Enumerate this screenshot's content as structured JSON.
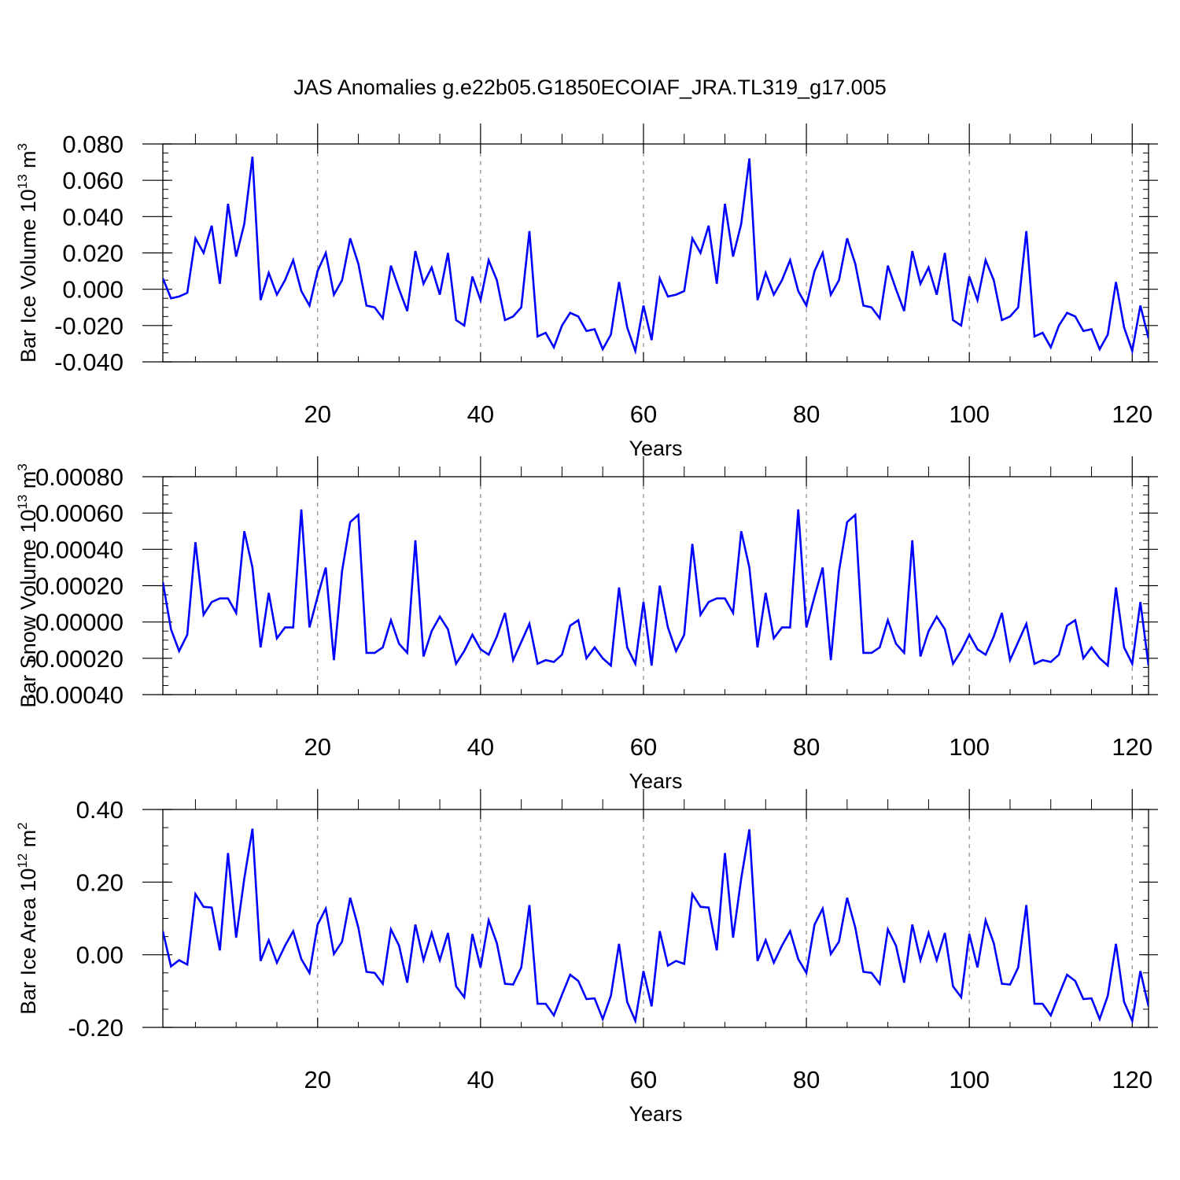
{
  "figure_title": "JAS Anomalies g.e22b05.G1850ECOIAF_JRA.TL319_g17.005",
  "line_color": "#0000ff",
  "chart_data": [
    {
      "type": "line",
      "title": "JAS Anomalies g.e22b05.G1850ECOIAF_JRA.TL319_g17.005",
      "xlabel": "Years",
      "ylabel_base": "Bar Ice Volume 10",
      "ylabel_exp": "13",
      "ylabel_unit": " m",
      "ylabel_unit_exp": "3",
      "xlim": [
        1,
        122
      ],
      "ylim": [
        -0.04,
        0.08
      ],
      "yticks": [
        -0.04,
        -0.02,
        0.0,
        0.02,
        0.04,
        0.06,
        0.08
      ],
      "ytick_labels": [
        "-0.040",
        "-0.020",
        "0.000",
        "0.020",
        "0.040",
        "0.060",
        "0.080"
      ],
      "xticks": [
        20,
        40,
        60,
        80,
        100,
        120
      ],
      "xtick_labels": [
        "20",
        "40",
        "60",
        "80",
        "100",
        "120"
      ],
      "series": [
        {
          "name": "Bar Ice Volume",
          "x_start": 1,
          "values": [
            0.006,
            -0.005,
            -0.004,
            -0.002,
            0.028,
            0.02,
            0.035,
            0.003,
            0.047,
            0.018,
            0.036,
            0.073,
            -0.006,
            0.009,
            -0.003,
            0.005,
            0.016,
            -0.001,
            -0.009,
            0.01,
            0.02,
            -0.003,
            0.005,
            0.028,
            0.014,
            -0.009,
            -0.01,
            -0.016,
            0.013,
            0.0,
            -0.012,
            0.021,
            0.003,
            0.012,
            -0.003,
            0.02,
            -0.017,
            -0.02,
            0.007,
            -0.006,
            0.016,
            0.005,
            -0.017,
            -0.015,
            -0.01,
            0.032,
            -0.026,
            -0.024,
            -0.032,
            -0.02,
            -0.013,
            -0.015,
            -0.023,
            -0.022,
            -0.033,
            -0.025,
            0.004,
            -0.021,
            -0.034,
            -0.009,
            -0.028,
            0.006,
            -0.004,
            -0.003,
            -0.001,
            0.028,
            0.02,
            0.035,
            0.003,
            0.047,
            0.018,
            0.036,
            0.072,
            -0.006,
            0.009,
            -0.003,
            0.005,
            0.016,
            -0.001,
            -0.009,
            0.01,
            0.02,
            -0.003,
            0.005,
            0.028,
            0.014,
            -0.009,
            -0.01,
            -0.016,
            0.013,
            0.0,
            -0.012,
            0.021,
            0.003,
            0.012,
            -0.003,
            0.02,
            -0.017,
            -0.02,
            0.007,
            -0.006,
            0.016,
            0.005,
            -0.017,
            -0.015,
            -0.01,
            0.032,
            -0.026,
            -0.024,
            -0.032,
            -0.02,
            -0.013,
            -0.015,
            -0.023,
            -0.022,
            -0.033,
            -0.025,
            0.004,
            -0.021,
            -0.034,
            -0.009,
            -0.027
          ]
        }
      ]
    },
    {
      "type": "line",
      "xlabel": "Years",
      "ylabel_base": "Bar Snow Volume 10",
      "ylabel_exp": "13",
      "ylabel_unit": " m",
      "ylabel_unit_exp": "3",
      "xlim": [
        1,
        122
      ],
      "ylim": [
        -0.0004,
        0.0008
      ],
      "yticks": [
        -0.0004,
        -0.0002,
        0.0,
        0.0002,
        0.0004,
        0.0006,
        0.0008
      ],
      "ytick_labels": [
        "-0.00040",
        "-0.00020",
        "0.00000",
        "0.00020",
        "0.00040",
        "0.00060",
        "0.00080"
      ],
      "xticks": [
        20,
        40,
        60,
        80,
        100,
        120
      ],
      "xtick_labels": [
        "20",
        "40",
        "60",
        "80",
        "100",
        "120"
      ],
      "series": [
        {
          "name": "Bar Snow Volume",
          "x_start": 1,
          "values": [
            0.00022,
            -4e-05,
            -0.00016,
            -7e-05,
            0.00044,
            4e-05,
            0.00011,
            0.00013,
            0.00013,
            5e-05,
            0.0005,
            0.0003,
            -0.00014,
            0.00016,
            -9e-05,
            -3e-05,
            -3e-05,
            0.00062,
            -3e-05,
            0.00014,
            0.0003,
            -0.00021,
            0.00028,
            0.00055,
            0.00059,
            -0.00017,
            -0.00017,
            -0.00014,
            1e-05,
            -0.00012,
            -0.00017,
            0.00045,
            -0.00019,
            -5e-05,
            3e-05,
            -4e-05,
            -0.00023,
            -0.00016,
            -7e-05,
            -0.00015,
            -0.00018,
            -8e-05,
            5e-05,
            -0.00021,
            -0.00011,
            -1e-05,
            -0.00023,
            -0.00021,
            -0.00022,
            -0.00018,
            -2e-05,
            1e-05,
            -0.0002,
            -0.00014,
            -0.0002,
            -0.00024,
            0.00019,
            -0.00014,
            -0.00023,
            0.00011,
            -0.00024,
            0.0002,
            -3e-05,
            -0.00016,
            -7e-05,
            0.00043,
            4e-05,
            0.00011,
            0.00013,
            0.00013,
            5e-05,
            0.0005,
            0.0003,
            -0.00014,
            0.00016,
            -9e-05,
            -3e-05,
            -3e-05,
            0.00062,
            -3e-05,
            0.00014,
            0.0003,
            -0.00021,
            0.00028,
            0.00055,
            0.00059,
            -0.00017,
            -0.00017,
            -0.00014,
            1e-05,
            -0.00012,
            -0.00017,
            0.00045,
            -0.00019,
            -5e-05,
            3e-05,
            -4e-05,
            -0.00023,
            -0.00016,
            -7e-05,
            -0.00015,
            -0.00018,
            -8e-05,
            5e-05,
            -0.00021,
            -0.00011,
            -1e-05,
            -0.00023,
            -0.00021,
            -0.00022,
            -0.00018,
            -2e-05,
            1e-05,
            -0.0002,
            -0.00014,
            -0.0002,
            -0.00024,
            0.00019,
            -0.00014,
            -0.00023,
            0.00011,
            -0.00024
          ]
        }
      ]
    },
    {
      "type": "line",
      "xlabel": "Years",
      "ylabel_base": "Bar Ice Area 10",
      "ylabel_exp": "12",
      "ylabel_unit": " m",
      "ylabel_unit_exp": "2",
      "xlim": [
        1,
        122
      ],
      "ylim": [
        -0.2,
        0.4
      ],
      "yticks": [
        -0.2,
        0.0,
        0.2,
        0.4
      ],
      "ytick_labels": [
        "-0.20",
        "0.00",
        "0.20",
        "0.40"
      ],
      "xticks": [
        20,
        40,
        60,
        80,
        100,
        120
      ],
      "xtick_labels": [
        "20",
        "40",
        "60",
        "80",
        "100",
        "120"
      ],
      "series": [
        {
          "name": "Bar Ice Area",
          "x_start": 1,
          "values": [
            0.065,
            -0.032,
            -0.015,
            -0.027,
            0.167,
            0.132,
            0.13,
            0.012,
            0.28,
            0.047,
            0.21,
            0.347,
            -0.017,
            0.04,
            -0.022,
            0.025,
            0.065,
            -0.012,
            -0.05,
            0.083,
            0.127,
            0.002,
            0.036,
            0.157,
            0.075,
            -0.047,
            -0.05,
            -0.08,
            0.07,
            0.025,
            -0.077,
            0.083,
            -0.015,
            0.06,
            -0.015,
            0.06,
            -0.087,
            -0.117,
            0.057,
            -0.035,
            0.095,
            0.032,
            -0.08,
            -0.082,
            -0.035,
            0.137,
            -0.135,
            -0.135,
            -0.167,
            -0.11,
            -0.055,
            -0.072,
            -0.122,
            -0.12,
            -0.177,
            -0.113,
            0.03,
            -0.13,
            -0.182,
            -0.045,
            -0.142,
            0.065,
            -0.03,
            -0.017,
            -0.025,
            0.167,
            0.132,
            0.13,
            0.012,
            0.28,
            0.047,
            0.21,
            0.345,
            -0.017,
            0.04,
            -0.022,
            0.025,
            0.065,
            -0.012,
            -0.05,
            0.083,
            0.127,
            0.002,
            0.036,
            0.157,
            0.075,
            -0.047,
            -0.05,
            -0.08,
            0.07,
            0.025,
            -0.077,
            0.083,
            -0.015,
            0.06,
            -0.015,
            0.06,
            -0.087,
            -0.117,
            0.057,
            -0.035,
            0.095,
            0.032,
            -0.08,
            -0.082,
            -0.035,
            0.137,
            -0.135,
            -0.135,
            -0.167,
            -0.11,
            -0.055,
            -0.072,
            -0.122,
            -0.12,
            -0.177,
            -0.113,
            0.03,
            -0.13,
            -0.182,
            -0.045,
            -0.142
          ]
        }
      ]
    }
  ]
}
